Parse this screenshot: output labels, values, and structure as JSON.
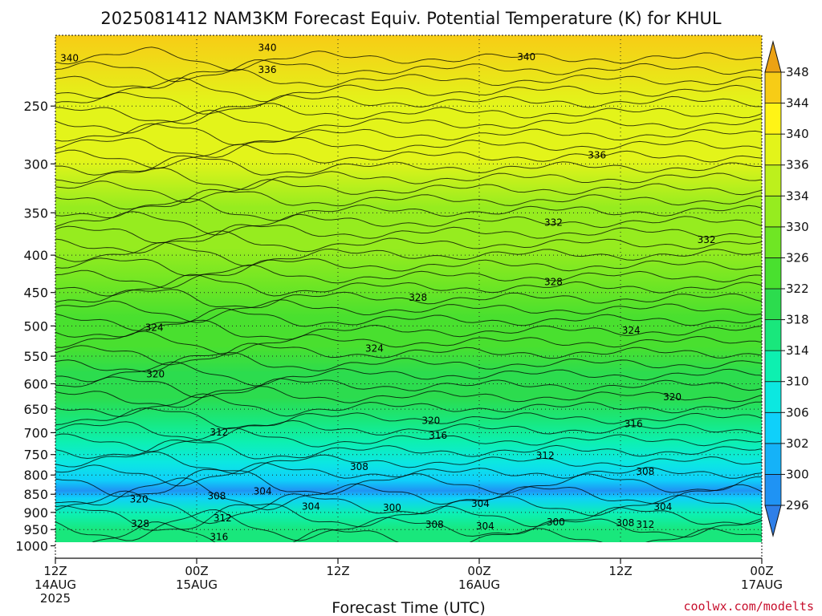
{
  "chart_data": {
    "type": "contour",
    "title": "2025081412 NAM3KM Forecast Equiv. Potential Temperature (K) for KHUL",
    "xlabel": "Forecast Time (UTC)",
    "x_ticks": [
      {
        "l1": "12Z",
        "l2": "14AUG",
        "l3": "2025",
        "hour": 0
      },
      {
        "l1": "00Z",
        "l2": "15AUG",
        "l3": "",
        "hour": 12
      },
      {
        "l1": "12Z",
        "l2": "",
        "l3": "",
        "hour": 24
      },
      {
        "l1": "00Z",
        "l2": "16AUG",
        "l3": "",
        "hour": 36
      },
      {
        "l1": "12Z",
        "l2": "",
        "l3": "",
        "hour": 48
      },
      {
        "l1": "00Z",
        "l2": "17AUG",
        "l3": "",
        "hour": 60
      }
    ],
    "x_range_hours": [
      0,
      60
    ],
    "y_axis": "pressure (hPa), log scale, inverted",
    "y_range": [
      1000,
      200
    ],
    "y_ticks": [
      250,
      300,
      350,
      400,
      450,
      500,
      550,
      600,
      650,
      700,
      750,
      800,
      850,
      900,
      950,
      1000
    ],
    "grid": "dotted at y ticks and x ticks",
    "colorbar": {
      "levels": [
        296,
        300,
        302,
        306,
        310,
        314,
        318,
        322,
        326,
        330,
        334,
        336,
        340,
        344,
        348
      ],
      "colors": [
        "#2f7fe8",
        "#1f93f4",
        "#15b2f8",
        "#0fd0fa",
        "#0ce8e0",
        "#0df0b0",
        "#19e77c",
        "#2cdc4e",
        "#49e02f",
        "#6fe624",
        "#96ec1f",
        "#bdf01c",
        "#e3f41a",
        "#fff416",
        "#f7cc16",
        "#eca214"
      ],
      "position": "right"
    },
    "profile": [
      {
        "p": 200,
        "theta": 345
      },
      {
        "p": 250,
        "theta": 339
      },
      {
        "p": 300,
        "theta": 336
      },
      {
        "p": 350,
        "theta": 333
      },
      {
        "p": 400,
        "theta": 330
      },
      {
        "p": 450,
        "theta": 328
      },
      {
        "p": 500,
        "theta": 325
      },
      {
        "p": 550,
        "theta": 323
      },
      {
        "p": 600,
        "theta": 320
      },
      {
        "p": 650,
        "theta": 318
      },
      {
        "p": 700,
        "theta": 314
      },
      {
        "p": 750,
        "theta": 310
      },
      {
        "p": 800,
        "theta": 306
      },
      {
        "p": 850,
        "theta": 302
      },
      {
        "p": 880,
        "theta": 299
      },
      {
        "p": 900,
        "theta": 303
      },
      {
        "p": 950,
        "theta": 311
      },
      {
        "p": 1000,
        "theta": 317
      }
    ],
    "contour_labels": [
      {
        "text": "340",
        "hour": 1.2,
        "p": 215
      },
      {
        "text": "340",
        "hour": 18.0,
        "p": 208
      },
      {
        "text": "336",
        "hour": 18.0,
        "p": 223
      },
      {
        "text": "340",
        "hour": 40.0,
        "p": 214
      },
      {
        "text": "336",
        "hour": 46.0,
        "p": 292
      },
      {
        "text": "332",
        "hour": 42.3,
        "p": 361
      },
      {
        "text": "332",
        "hour": 55.3,
        "p": 381
      },
      {
        "text": "328",
        "hour": 30.8,
        "p": 457
      },
      {
        "text": "328",
        "hour": 42.3,
        "p": 435
      },
      {
        "text": "324",
        "hour": 8.4,
        "p": 503
      },
      {
        "text": "324",
        "hour": 27.1,
        "p": 537
      },
      {
        "text": "324",
        "hour": 48.9,
        "p": 507
      },
      {
        "text": "320",
        "hour": 8.5,
        "p": 582
      },
      {
        "text": "320",
        "hour": 31.9,
        "p": 674
      },
      {
        "text": "320",
        "hour": 52.4,
        "p": 626
      },
      {
        "text": "316",
        "hour": 32.5,
        "p": 706
      },
      {
        "text": "316",
        "hour": 49.1,
        "p": 681
      },
      {
        "text": "312",
        "hour": 13.9,
        "p": 699
      },
      {
        "text": "312",
        "hour": 41.6,
        "p": 752
      },
      {
        "text": "308",
        "hour": 25.8,
        "p": 780
      },
      {
        "text": "308",
        "hour": 50.1,
        "p": 791
      },
      {
        "text": "308",
        "hour": 13.7,
        "p": 855
      },
      {
        "text": "304",
        "hour": 17.6,
        "p": 842
      },
      {
        "text": "304",
        "hour": 21.7,
        "p": 883
      },
      {
        "text": "304",
        "hour": 36.1,
        "p": 876
      },
      {
        "text": "304",
        "hour": 51.6,
        "p": 885
      },
      {
        "text": "304",
        "hour": 36.5,
        "p": 940
      },
      {
        "text": "300",
        "hour": 28.6,
        "p": 887
      },
      {
        "text": "300",
        "hour": 42.5,
        "p": 928
      },
      {
        "text": "308",
        "hour": 32.2,
        "p": 935
      },
      {
        "text": "308",
        "hour": 48.4,
        "p": 930
      },
      {
        "text": "312",
        "hour": 50.1,
        "p": 935
      },
      {
        "text": "312",
        "hour": 14.2,
        "p": 917
      },
      {
        "text": "316",
        "hour": 13.9,
        "p": 973
      },
      {
        "text": "320",
        "hour": 7.1,
        "p": 864
      },
      {
        "text": "328",
        "hour": 7.2,
        "p": 933
      }
    ],
    "ground": {
      "color": "#9b4f26",
      "p_top": 1000
    }
  },
  "credit": "coolwx.com/modelts"
}
